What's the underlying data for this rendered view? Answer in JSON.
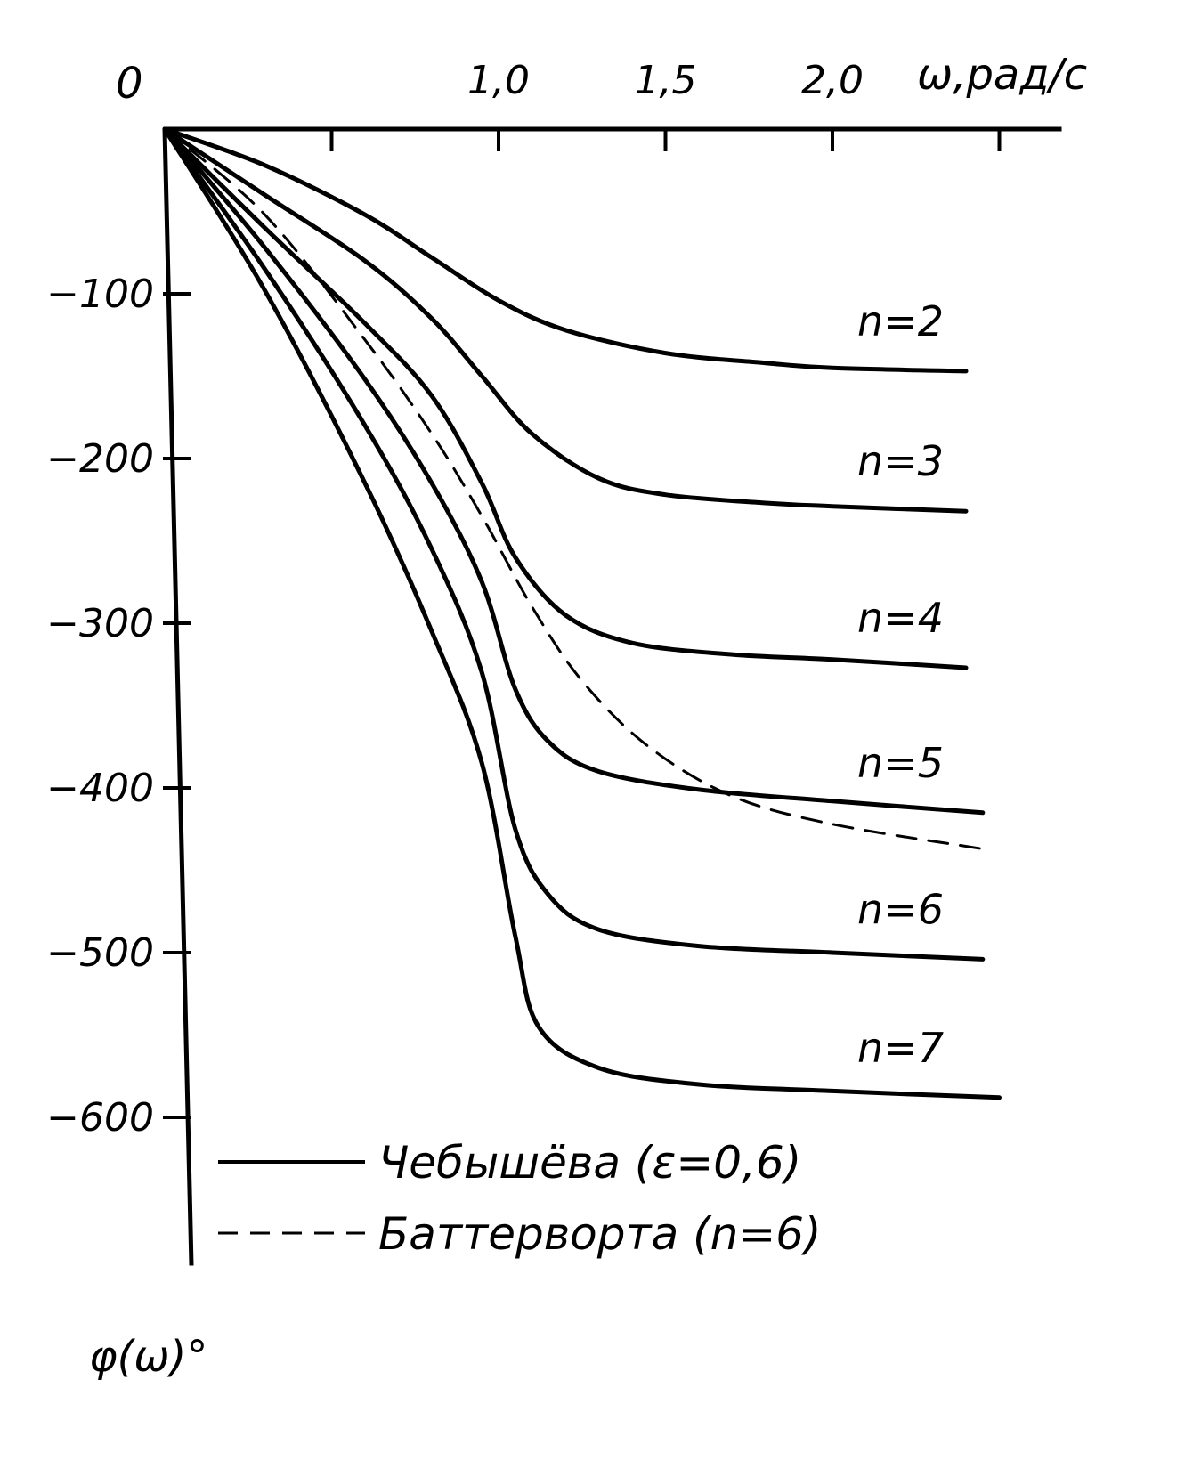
{
  "chart_data": {
    "type": "line",
    "title": "",
    "xlabel": "ω,рад/с",
    "ylabel": "φ(ω)°",
    "origin_label": "0",
    "xlim": [
      0,
      2.5
    ],
    "ylim": [
      -690,
      0
    ],
    "x_ticks": [
      {
        "value": 0.5,
        "label": ""
      },
      {
        "value": 1.0,
        "label": "1,0"
      },
      {
        "value": 1.5,
        "label": "1,5"
      },
      {
        "value": 2.0,
        "label": "2,0"
      },
      {
        "value": 2.5,
        "label": ""
      }
    ],
    "y_ticks": [
      {
        "value": -100,
        "label": "−100"
      },
      {
        "value": -200,
        "label": "−200"
      },
      {
        "value": -300,
        "label": "−300"
      },
      {
        "value": -400,
        "label": "−400"
      },
      {
        "value": -500,
        "label": "−500"
      },
      {
        "value": -600,
        "label": "−600"
      }
    ],
    "grid": false,
    "series": [
      {
        "name": "n=2",
        "style": "solid",
        "points": [
          [
            0,
            0
          ],
          [
            0.3,
            -22
          ],
          [
            0.6,
            -52
          ],
          [
            0.8,
            -78
          ],
          [
            1.0,
            -104
          ],
          [
            1.2,
            -122
          ],
          [
            1.5,
            -136
          ],
          [
            1.8,
            -142
          ],
          [
            2.0,
            -145
          ],
          [
            2.4,
            -147
          ]
        ]
      },
      {
        "name": "n=3",
        "style": "solid",
        "points": [
          [
            0,
            0
          ],
          [
            0.3,
            -40
          ],
          [
            0.6,
            -80
          ],
          [
            0.8,
            -115
          ],
          [
            0.95,
            -150
          ],
          [
            1.1,
            -185
          ],
          [
            1.3,
            -212
          ],
          [
            1.5,
            -222
          ],
          [
            1.8,
            -227
          ],
          [
            2.0,
            -229
          ],
          [
            2.4,
            -232
          ]
        ]
      },
      {
        "name": "n=4",
        "style": "solid",
        "points": [
          [
            0,
            0
          ],
          [
            0.3,
            -60
          ],
          [
            0.6,
            -118
          ],
          [
            0.8,
            -162
          ],
          [
            0.95,
            -215
          ],
          [
            1.05,
            -260
          ],
          [
            1.2,
            -295
          ],
          [
            1.4,
            -312
          ],
          [
            1.7,
            -319
          ],
          [
            2.0,
            -322
          ],
          [
            2.4,
            -327
          ]
        ]
      },
      {
        "name": "n=5",
        "style": "solid",
        "points": [
          [
            0,
            0
          ],
          [
            0.3,
            -72
          ],
          [
            0.6,
            -152
          ],
          [
            0.8,
            -215
          ],
          [
            0.95,
            -275
          ],
          [
            1.05,
            -340
          ],
          [
            1.15,
            -372
          ],
          [
            1.3,
            -390
          ],
          [
            1.6,
            -401
          ],
          [
            2.0,
            -408
          ],
          [
            2.45,
            -415
          ]
        ]
      },
      {
        "name": "n=6",
        "style": "solid",
        "points": [
          [
            0,
            0
          ],
          [
            0.3,
            -85
          ],
          [
            0.6,
            -180
          ],
          [
            0.8,
            -255
          ],
          [
            0.95,
            -330
          ],
          [
            1.05,
            -425
          ],
          [
            1.15,
            -465
          ],
          [
            1.3,
            -486
          ],
          [
            1.6,
            -496
          ],
          [
            2.0,
            -500
          ],
          [
            2.45,
            -504
          ]
        ]
      },
      {
        "name": "n=7",
        "style": "solid",
        "points": [
          [
            0,
            0
          ],
          [
            0.3,
            -98
          ],
          [
            0.6,
            -215
          ],
          [
            0.8,
            -305
          ],
          [
            0.95,
            -385
          ],
          [
            1.05,
            -490
          ],
          [
            1.12,
            -545
          ],
          [
            1.3,
            -570
          ],
          [
            1.6,
            -580
          ],
          [
            2.0,
            -584
          ],
          [
            2.5,
            -588
          ]
        ]
      },
      {
        "name": "Баттерворта (n=6)",
        "style": "dashed",
        "points": [
          [
            0,
            0
          ],
          [
            0.3,
            -52
          ],
          [
            0.6,
            -128
          ],
          [
            0.8,
            -185
          ],
          [
            0.95,
            -235
          ],
          [
            1.1,
            -290
          ],
          [
            1.25,
            -335
          ],
          [
            1.45,
            -375
          ],
          [
            1.7,
            -405
          ],
          [
            2.0,
            -422
          ],
          [
            2.45,
            -437
          ]
        ]
      }
    ],
    "legend": [
      {
        "label": "Чебышёва (ε=0,6)",
        "style": "solid"
      },
      {
        "label": "Баттерворта (n=6)",
        "style": "dashed"
      }
    ],
    "legend_position": "bottom-center"
  }
}
